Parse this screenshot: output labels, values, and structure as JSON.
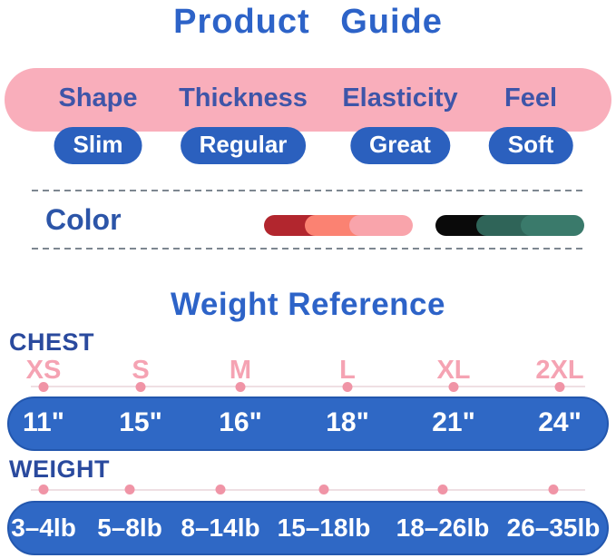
{
  "title": "Product  Guide",
  "spec_banner": {
    "columns": [
      {
        "label": "Shape",
        "value": "Slim"
      },
      {
        "label": "Thickness",
        "value": "Regular"
      },
      {
        "label": "Elasticity",
        "value": "Great"
      },
      {
        "label": "Feel",
        "value": "Soft"
      }
    ]
  },
  "color_section": {
    "label": "Color",
    "swatches": [
      {
        "name": "red-pink-gradient",
        "colors": [
          "#b2262e",
          "#fb8272",
          "#f9a4ab"
        ]
      },
      {
        "name": "black-green-gradient",
        "colors": [
          "#0a0a0a",
          "#2f6458",
          "#3a7a6b"
        ]
      }
    ]
  },
  "weight_reference": {
    "title": "Weight Reference",
    "chest_label": "CHEST",
    "weight_label": "WEIGHT",
    "sizes": [
      "XS",
      "S",
      "M",
      "L",
      "XL",
      "2XL"
    ],
    "chest_values": [
      "11\"",
      "15\"",
      "16\"",
      "18\"",
      "21\"",
      "24\""
    ],
    "weight_values": [
      "3–4lb",
      "5–8lb",
      "8–14lb",
      "15–18lb",
      "18–26lb",
      "26–35lb"
    ]
  },
  "chart_data": {
    "type": "table",
    "title": "Weight Reference",
    "categories": [
      "XS",
      "S",
      "M",
      "L",
      "XL",
      "2XL"
    ],
    "series": [
      {
        "name": "CHEST",
        "values": [
          "11\"",
          "15\"",
          "16\"",
          "18\"",
          "21\"",
          "24\""
        ]
      },
      {
        "name": "WEIGHT",
        "values": [
          "3–4lb",
          "5–8lb",
          "8–14lb",
          "15–18lb",
          "18–26lb",
          "26–35lb"
        ]
      }
    ]
  },
  "colors": {
    "title_blue": "#2d63c8",
    "label_blue": "#3e55a8",
    "dark_blue_label": "#2a4a9e",
    "pill_blue": "#2b60be",
    "bar_blue": "#2f68c5",
    "banner_pink": "#f9aebb",
    "size_pink": "#f5a3b3",
    "dot_pink": "#f094a6",
    "text_white": "#ffffff"
  }
}
